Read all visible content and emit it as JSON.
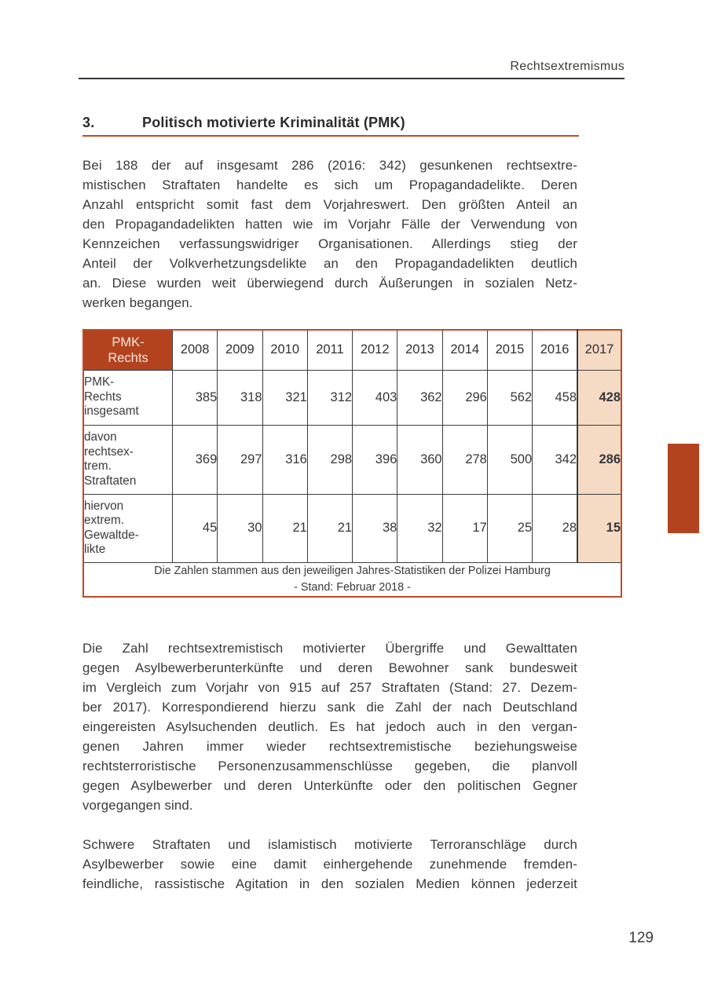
{
  "header": {
    "running_title": "Rechtsextremismus"
  },
  "heading": {
    "number": "3.",
    "title": "Politisch motivierte Kriminalität (PMK)"
  },
  "paragraphs": [
    {
      "justify_last": false,
      "lines": [
        "Bei 188 der auf insgesamt 286 (2016: 342) gesunkenen rechtsextre-",
        "mistischen Straftaten handelte es sich um Propagandadelikte. Deren",
        "Anzahl entspricht somit fast dem Vorjahreswert. Den größten Anteil an",
        "den Propagandadelikten hatten wie im Vorjahr Fälle der Verwendung von",
        "Kennzeichen verfassungswidriger Organisationen. Allerdings stieg der",
        "Anteil der Volkverhetzungsdelikte an den Propagandadelikten deutlich",
        "an. Diese wurden weit überwiegend durch Äußerungen in sozialen Netz-",
        "werken begangen."
      ]
    },
    {
      "justify_last": false,
      "lines": [
        "Die Zahl rechtsextremistisch motivierter Übergriffe und Gewalttaten",
        "gegen Asylbewerberunterkünfte und deren Bewohner sank bundesweit",
        "im Vergleich zum Vorjahr von 915 auf 257 Straftaten (Stand: 27. Dezem-",
        "ber 2017). Korrespondierend hierzu sank die Zahl der nach Deutschland",
        "eingereisten Asylsuchenden deutlich. Es hat jedoch auch in den vergan-",
        "genen Jahren immer wieder rechtsextremistische beziehungsweise",
        "rechtsterroristische Personenzusammenschlüsse gegeben, die planvoll",
        "gegen Asylbewerber und deren Unterkünfte oder den politischen Gegner",
        "vorgegangen sind."
      ]
    },
    {
      "justify_last": true,
      "lines": [
        "Schwere Straftaten und islamistisch motivierte Terroranschläge durch",
        "Asylbewerber sowie eine damit einhergehende zunehmende fremden-",
        "feindliche, rassistische Agitation in den sozialen Medien können jederzeit"
      ]
    }
  ],
  "table": {
    "corner_label": "PMK-\nRechts",
    "years": [
      "2008",
      "2009",
      "2010",
      "2011",
      "2012",
      "2013",
      "2014",
      "2015",
      "2016",
      "2017"
    ],
    "rows": [
      {
        "label": "PMK-\nRechts\ninsgesamt",
        "values": [
          "385",
          "318",
          "321",
          "312",
          "403",
          "362",
          "296",
          "562",
          "458",
          "428"
        ]
      },
      {
        "label": "davon\nrechtsex-\ntrem.\nStraftaten",
        "values": [
          "369",
          "297",
          "316",
          "298",
          "396",
          "360",
          "278",
          "500",
          "342",
          "286"
        ]
      },
      {
        "label": "hiervon\nextrem.\nGewaltde-\nlikte",
        "values": [
          "45",
          "30",
          "21",
          "21",
          "38",
          "32",
          "17",
          "25",
          "28",
          "15"
        ]
      }
    ],
    "footnote": {
      "line1": "Die Zahlen stammen aus den jeweiligen Jahres-Statistiken der Polizei Hamburg",
      "line2": "- Stand: Februar 2018 -"
    }
  },
  "page_number": "129",
  "colors": {
    "accent": "#B3431E",
    "table_border": "#C24A26",
    "heading_underline": "#C6491F",
    "highlight_2017": "#F5DAC4",
    "rule": "#35383B",
    "text": "#3A3A3A"
  }
}
